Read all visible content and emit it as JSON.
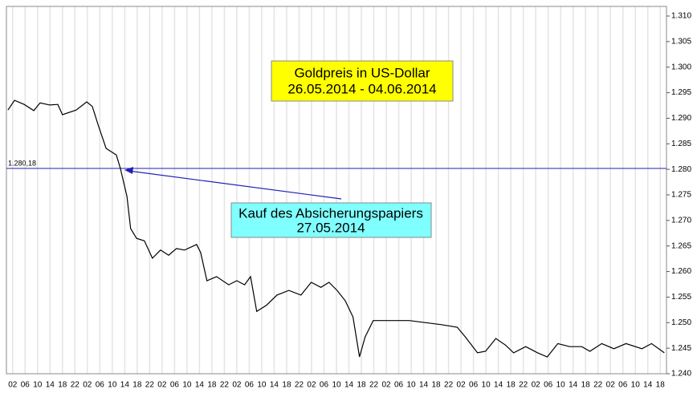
{
  "chart_data": {
    "type": "line",
    "title": "Goldpreis in US-Dollar",
    "subtitle": "26.05.2014 - 04.06.2014",
    "annotation": [
      "Kauf des Absicherungspapiers",
      "27.05.2014"
    ],
    "reference_line": {
      "value": 1.28018,
      "label": "1.280,18",
      "color": "#1f1fb4"
    },
    "xlim": [
      0,
      212
    ],
    "ylim": [
      1.24,
      1.31
    ],
    "yticks": [
      {
        "value": 1.24,
        "label": "1.240"
      },
      {
        "value": 1.245,
        "label": "1.245"
      },
      {
        "value": 1.25,
        "label": "1.250"
      },
      {
        "value": 1.255,
        "label": "1.255"
      },
      {
        "value": 1.26,
        "label": "1.260"
      },
      {
        "value": 1.265,
        "label": "1.265"
      },
      {
        "value": 1.27,
        "label": "1.270"
      },
      {
        "value": 1.275,
        "label": "1.275"
      },
      {
        "value": 1.28,
        "label": "1.280"
      },
      {
        "value": 1.285,
        "label": "1.285"
      },
      {
        "value": 1.29,
        "label": "1.290"
      },
      {
        "value": 1.295,
        "label": "1.295"
      },
      {
        "value": 1.3,
        "label": "1.300"
      },
      {
        "value": 1.305,
        "label": "1.305"
      },
      {
        "value": 1.31,
        "label": "1.310"
      }
    ],
    "xticks": [
      {
        "value": 2,
        "label": "02"
      },
      {
        "value": 6,
        "label": "06"
      },
      {
        "value": 10,
        "label": "10"
      },
      {
        "value": 14,
        "label": "14"
      },
      {
        "value": 18,
        "label": "18"
      },
      {
        "value": 22,
        "label": "22"
      },
      {
        "value": 26,
        "label": "02"
      },
      {
        "value": 30,
        "label": "06"
      },
      {
        "value": 34,
        "label": "10"
      },
      {
        "value": 38,
        "label": "14"
      },
      {
        "value": 42,
        "label": "18"
      },
      {
        "value": 46,
        "label": "22"
      },
      {
        "value": 50,
        "label": "02"
      },
      {
        "value": 54,
        "label": "06"
      },
      {
        "value": 58,
        "label": "10"
      },
      {
        "value": 62,
        "label": "14"
      },
      {
        "value": 66,
        "label": "18"
      },
      {
        "value": 70,
        "label": "22"
      },
      {
        "value": 74,
        "label": "02"
      },
      {
        "value": 78,
        "label": "06"
      },
      {
        "value": 82,
        "label": "10"
      },
      {
        "value": 86,
        "label": "14"
      },
      {
        "value": 90,
        "label": "18"
      },
      {
        "value": 94,
        "label": "22"
      },
      {
        "value": 98,
        "label": "02"
      },
      {
        "value": 102,
        "label": "06"
      },
      {
        "value": 106,
        "label": "10"
      },
      {
        "value": 110,
        "label": "14"
      },
      {
        "value": 114,
        "label": "18"
      },
      {
        "value": 118,
        "label": "22"
      },
      {
        "value": 122,
        "label": "02"
      },
      {
        "value": 126,
        "label": "06"
      },
      {
        "value": 130,
        "label": "10"
      },
      {
        "value": 134,
        "label": "14"
      },
      {
        "value": 138,
        "label": "18"
      },
      {
        "value": 142,
        "label": "22"
      },
      {
        "value": 146,
        "label": "02"
      },
      {
        "value": 150,
        "label": "06"
      },
      {
        "value": 154,
        "label": "10"
      },
      {
        "value": 158,
        "label": "14"
      },
      {
        "value": 162,
        "label": "18"
      },
      {
        "value": 166,
        "label": "22"
      },
      {
        "value": 170,
        "label": "02"
      },
      {
        "value": 174,
        "label": "06"
      },
      {
        "value": 178,
        "label": "10"
      },
      {
        "value": 182,
        "label": "14"
      },
      {
        "value": 186,
        "label": "18"
      },
      {
        "value": 190,
        "label": "22"
      },
      {
        "value": 194,
        "label": "02"
      },
      {
        "value": 198,
        "label": "06"
      },
      {
        "value": 202,
        "label": "10"
      },
      {
        "value": 206,
        "label": "14"
      },
      {
        "value": 210,
        "label": "18"
      }
    ],
    "grid": true,
    "series": [
      {
        "color": "#000000",
        "x": [
          0.5,
          2.6,
          5.7,
          8.8,
          10.8,
          13.9,
          16.5,
          18.0,
          22.4,
          25.8,
          27.6,
          29.4,
          32.0,
          35.3,
          36.6,
          38.7,
          39.9,
          41.8,
          44.3,
          46.9,
          49.5,
          52.1,
          54.6,
          57.2,
          61.1,
          62.4,
          64.4,
          67.5,
          71.4,
          74.0,
          76.5,
          78.4,
          80.4,
          83.5,
          86.9,
          90.7,
          94.6,
          97.9,
          101.0,
          103.6,
          106.2,
          108.8,
          111.3,
          113.4,
          115.2,
          117.8,
          121.6,
          129.4,
          139.7,
          144.8,
          147.4,
          151.3,
          153.9,
          157.2,
          160.3,
          162.9,
          166.8,
          170.6,
          173.7,
          177.1,
          180.9,
          184.8,
          187.4,
          191.2,
          195.1,
          199.0,
          204.1,
          207.2,
          211.3
        ],
        "values": [
          1.2916,
          1.2935,
          1.2927,
          1.2915,
          1.293,
          1.2926,
          1.2927,
          1.2907,
          1.2916,
          1.2932,
          1.2923,
          1.2888,
          1.2841,
          1.2828,
          1.2802,
          1.2747,
          1.2684,
          1.2665,
          1.266,
          1.2626,
          1.2642,
          1.2632,
          1.2645,
          1.2642,
          1.2653,
          1.2637,
          1.2582,
          1.259,
          1.2574,
          1.2582,
          1.2574,
          1.259,
          1.2522,
          1.2534,
          1.2554,
          1.2563,
          1.2554,
          1.2579,
          1.2569,
          1.2579,
          1.2563,
          1.2543,
          1.2511,
          1.2433,
          1.2472,
          1.2504,
          1.2504,
          1.2504,
          1.2496,
          1.2491,
          1.2472,
          1.2441,
          1.2444,
          1.2469,
          1.2456,
          1.2441,
          1.2453,
          1.2441,
          1.2433,
          1.2459,
          1.2453,
          1.2453,
          1.2444,
          1.2459,
          1.2449,
          1.2459,
          1.2449,
          1.2459,
          1.2441
        ]
      }
    ]
  }
}
